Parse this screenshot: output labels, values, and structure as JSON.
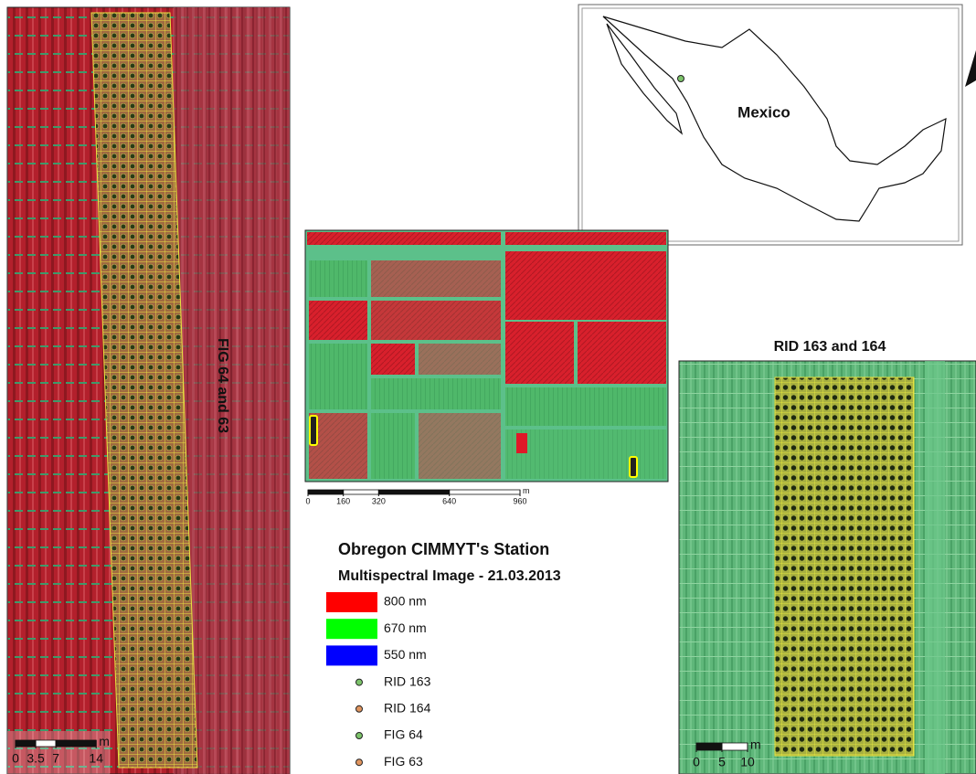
{
  "left_panel": {
    "label": "FIG 64 and 63",
    "scale_bar": {
      "ticks": [
        0,
        3.5,
        7,
        14
      ],
      "unit": "m"
    }
  },
  "inset_map": {
    "label": "Mexico"
  },
  "center_panel": {
    "scale_bar": {
      "ticks": [
        0,
        160,
        320,
        640,
        960
      ],
      "unit": "m"
    }
  },
  "right_panel": {
    "title": "RID 163 and 164",
    "scale_bar": {
      "ticks": [
        0,
        5,
        10
      ],
      "unit": "m"
    }
  },
  "legend": {
    "title": "Obregon CIMMYT's Station",
    "subtitle": "Multispectral Image - 21.03.2013",
    "items": [
      {
        "label": "800 nm",
        "shape": "rect",
        "color": "#ff0000"
      },
      {
        "label": "670 nm",
        "shape": "rect",
        "color": "#00ff00"
      },
      {
        "label": "550 nm",
        "shape": "rect",
        "color": "#0000ff"
      },
      {
        "label": "RID 163",
        "shape": "dot",
        "color": "#7cc36a"
      },
      {
        "label": "RID 164",
        "shape": "dot",
        "color": "#e0955f"
      },
      {
        "label": "FIG 64",
        "shape": "dot",
        "color": "#7cc36a"
      },
      {
        "label": "FIG 63",
        "shape": "dot",
        "color": "#e0955f"
      }
    ]
  }
}
